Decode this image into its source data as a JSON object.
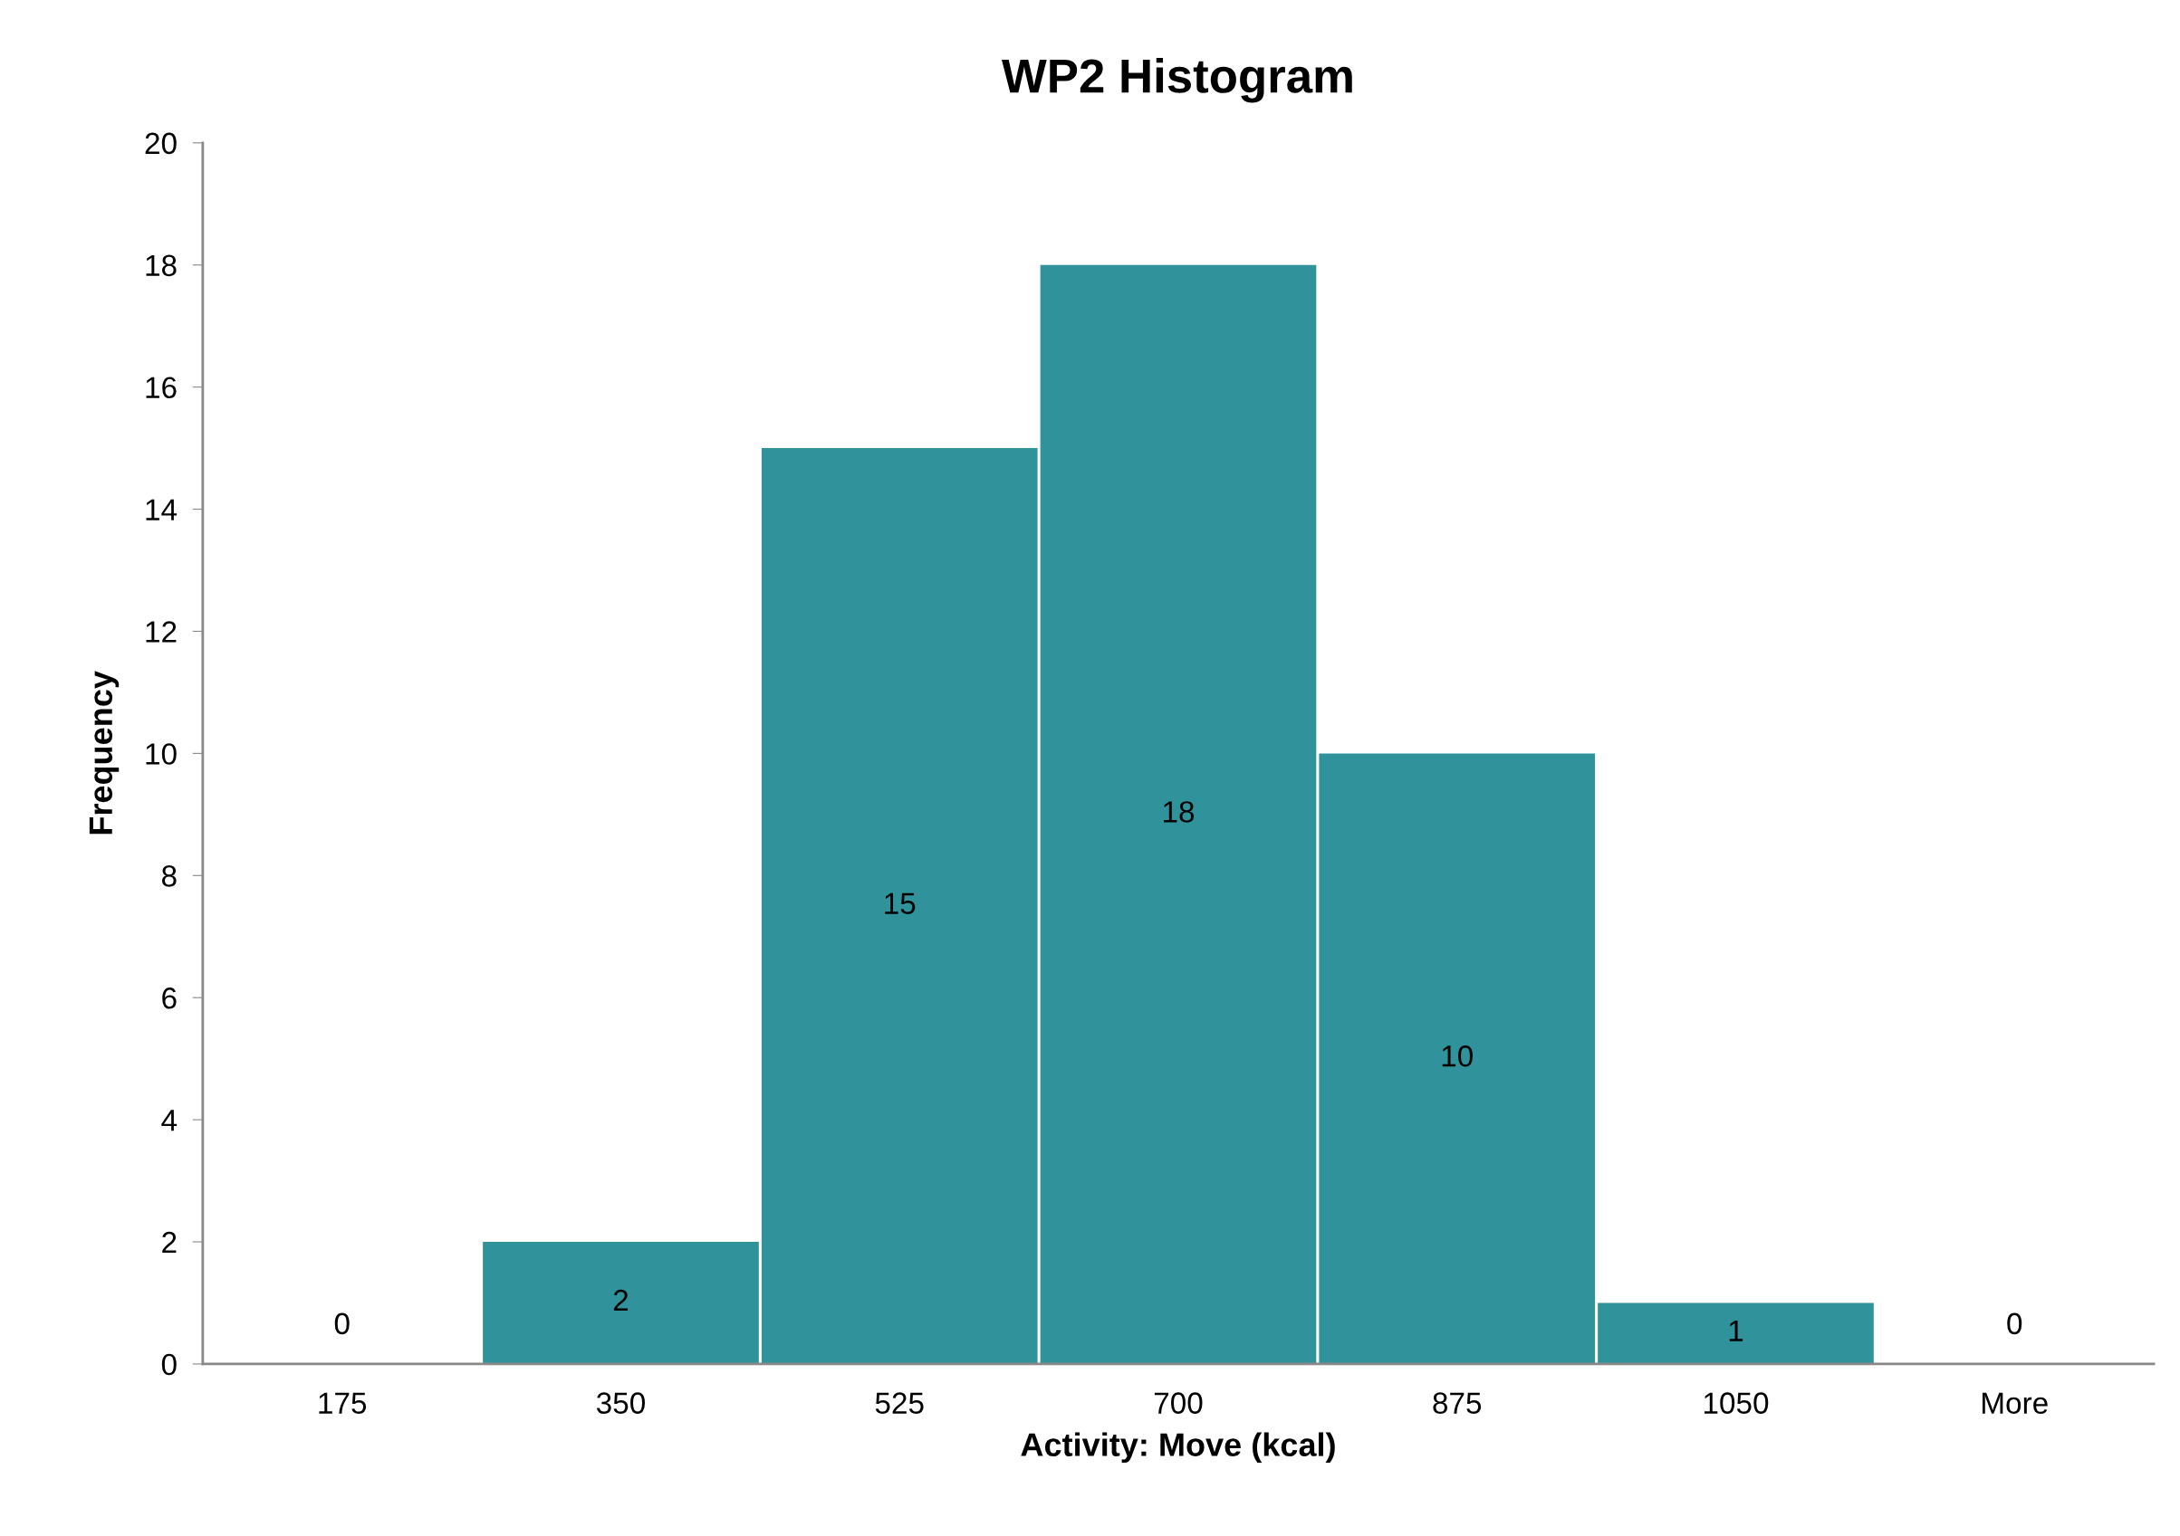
{
  "chart_data": {
    "type": "bar",
    "title": "WP2 Histogram",
    "xlabel": "Activity: Move (kcal)",
    "ylabel": "Frequency",
    "categories": [
      "175",
      "350",
      "525",
      "700",
      "875",
      "1050",
      "More"
    ],
    "values": [
      0,
      2,
      15,
      18,
      10,
      1,
      0
    ],
    "color": "#30929b",
    "ylim": [
      0,
      20
    ],
    "yticks": [
      0,
      2,
      4,
      6,
      8,
      10,
      12,
      14,
      16,
      18,
      20
    ],
    "grid": false,
    "legend": false,
    "data_labels": true
  }
}
